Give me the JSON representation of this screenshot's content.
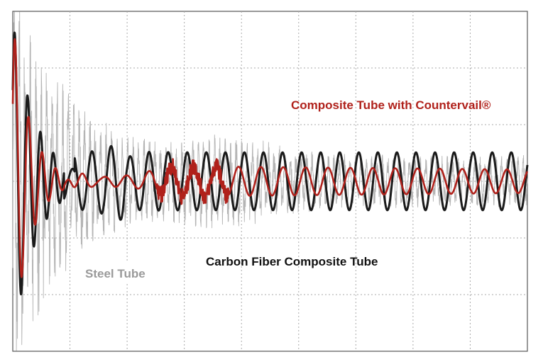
{
  "chart_data": {
    "type": "line",
    "title": "",
    "xlabel": "",
    "ylabel": "",
    "grid": true,
    "grid_style": "dotted",
    "xlim": [
      0,
      1
    ],
    "ylim": [
      -1,
      1
    ],
    "annotations": {
      "red": "Composite Tube with Countervail®",
      "black": "Carbon Fiber Composite Tube",
      "gray": "Steel Tube"
    },
    "series": [
      {
        "name": "Steel Tube",
        "color": "#b4b4b4",
        "description_values": {
          "initial_amplitude": 1.0,
          "decay": "fast-then-sustained noisy",
          "frequency_cycles": 70
        }
      },
      {
        "name": "Carbon Fiber Composite Tube",
        "color": "#1a1a1a",
        "description_values": {
          "initial_amplitude": 0.95,
          "sustained_amplitude": 0.17,
          "cycles": 27
        }
      },
      {
        "name": "Composite Tube with Countervail®",
        "color": "#b0211b",
        "description_values": {
          "initial_amplitude": 0.95,
          "sustained_amplitude": 0.08,
          "cycles": 23
        }
      }
    ]
  }
}
